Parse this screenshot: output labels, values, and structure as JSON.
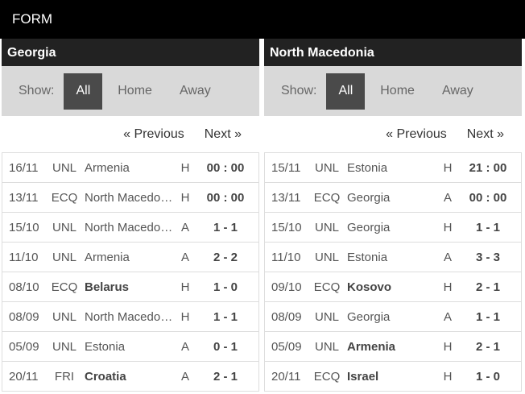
{
  "title": "FORM",
  "filter": {
    "label": "Show:",
    "all": "All",
    "home": "Home",
    "away": "Away"
  },
  "pager": {
    "prev": "« Previous",
    "next": "Next »"
  },
  "teams": [
    {
      "name": "Georgia",
      "matches": [
        {
          "date": "16/11",
          "comp": "UNL",
          "opp": "Armenia",
          "bold": false,
          "venue": "H",
          "score": "00 : 00"
        },
        {
          "date": "13/11",
          "comp": "ECQ",
          "opp": "North Macedonia",
          "bold": false,
          "venue": "H",
          "score": "00 : 00"
        },
        {
          "date": "15/10",
          "comp": "UNL",
          "opp": "North Macedonia",
          "bold": false,
          "venue": "A",
          "score": "1 - 1"
        },
        {
          "date": "11/10",
          "comp": "UNL",
          "opp": "Armenia",
          "bold": false,
          "venue": "A",
          "score": "2 - 2"
        },
        {
          "date": "08/10",
          "comp": "ECQ",
          "opp": "Belarus",
          "bold": true,
          "venue": "H",
          "score": "1 - 0"
        },
        {
          "date": "08/09",
          "comp": "UNL",
          "opp": "North Macedonia",
          "bold": false,
          "venue": "H",
          "score": "1 - 1"
        },
        {
          "date": "05/09",
          "comp": "UNL",
          "opp": "Estonia",
          "bold": false,
          "venue": "A",
          "score": "0 - 1"
        },
        {
          "date": "20/11",
          "comp": "FRI",
          "opp": "Croatia",
          "bold": true,
          "venue": "A",
          "score": "2 - 1"
        }
      ]
    },
    {
      "name": "North Macedonia",
      "matches": [
        {
          "date": "15/11",
          "comp": "UNL",
          "opp": "Estonia",
          "bold": false,
          "venue": "H",
          "score": "21 : 00"
        },
        {
          "date": "13/11",
          "comp": "ECQ",
          "opp": "Georgia",
          "bold": false,
          "venue": "A",
          "score": "00 : 00"
        },
        {
          "date": "15/10",
          "comp": "UNL",
          "opp": "Georgia",
          "bold": false,
          "venue": "H",
          "score": "1 - 1"
        },
        {
          "date": "11/10",
          "comp": "UNL",
          "opp": "Estonia",
          "bold": false,
          "venue": "A",
          "score": "3 - 3"
        },
        {
          "date": "09/10",
          "comp": "ECQ",
          "opp": "Kosovo",
          "bold": true,
          "venue": "H",
          "score": "2 - 1"
        },
        {
          "date": "08/09",
          "comp": "UNL",
          "opp": "Georgia",
          "bold": false,
          "venue": "A",
          "score": "1 - 1"
        },
        {
          "date": "05/09",
          "comp": "UNL",
          "opp": "Armenia",
          "bold": true,
          "venue": "H",
          "score": "2 - 1"
        },
        {
          "date": "20/11",
          "comp": "ECQ",
          "opp": "Israel",
          "bold": true,
          "venue": "H",
          "score": "1 - 0"
        }
      ]
    }
  ]
}
